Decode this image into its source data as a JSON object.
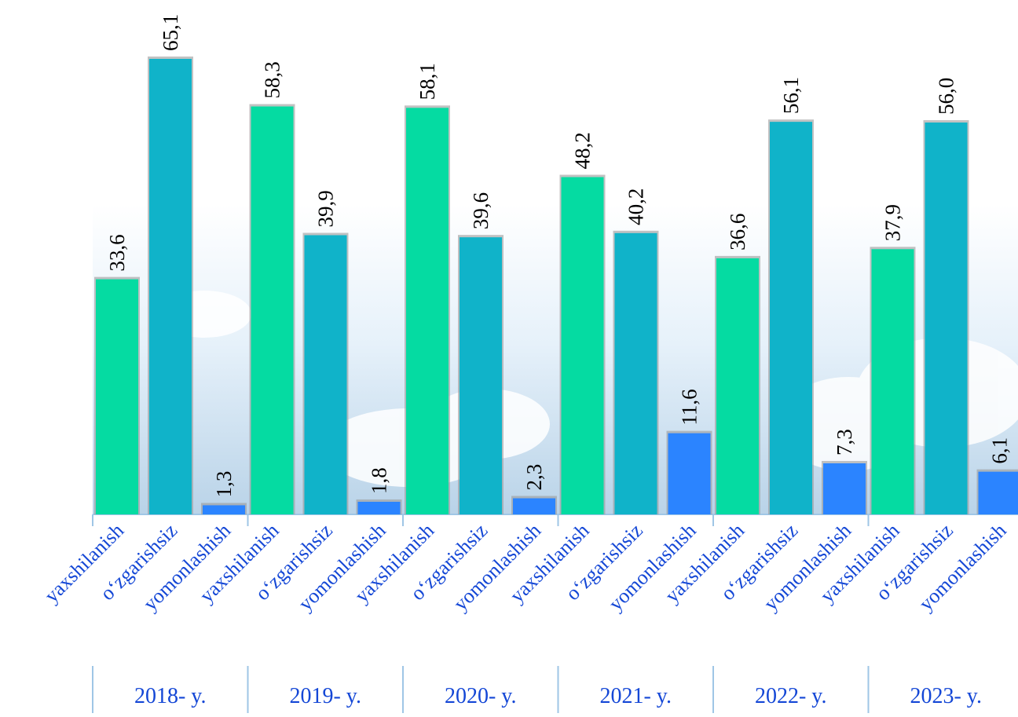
{
  "chart_data": {
    "type": "bar",
    "categories": [
      "2018- y.",
      "2019- y.",
      "2020- y.",
      "2021- y.",
      "2022- y.",
      "2023- y."
    ],
    "series": [
      {
        "name": "yaxshilanish",
        "color": "#05dba2",
        "values": [
          33.6,
          58.3,
          58.1,
          48.2,
          36.6,
          37.9
        ],
        "value_labels": [
          "33,6",
          "58,3",
          "58,1",
          "48,2",
          "36,6",
          "37,9"
        ]
      },
      {
        "name": "o‘zgarishsiz",
        "color": "#10b3c9",
        "values": [
          65.1,
          39.9,
          39.6,
          40.2,
          56.1,
          56.0
        ],
        "value_labels": [
          "65,1",
          "39,9",
          "39,6",
          "40,2",
          "56,1",
          "56,0"
        ]
      },
      {
        "name": "yomonlashish",
        "color": "#2b84ff",
        "values": [
          1.3,
          1.8,
          2.3,
          11.6,
          7.3,
          6.1
        ],
        "value_labels": [
          "1,3",
          "1,8",
          "2,3",
          "11,6",
          "7,3",
          "6,1"
        ]
      }
    ]
  }
}
